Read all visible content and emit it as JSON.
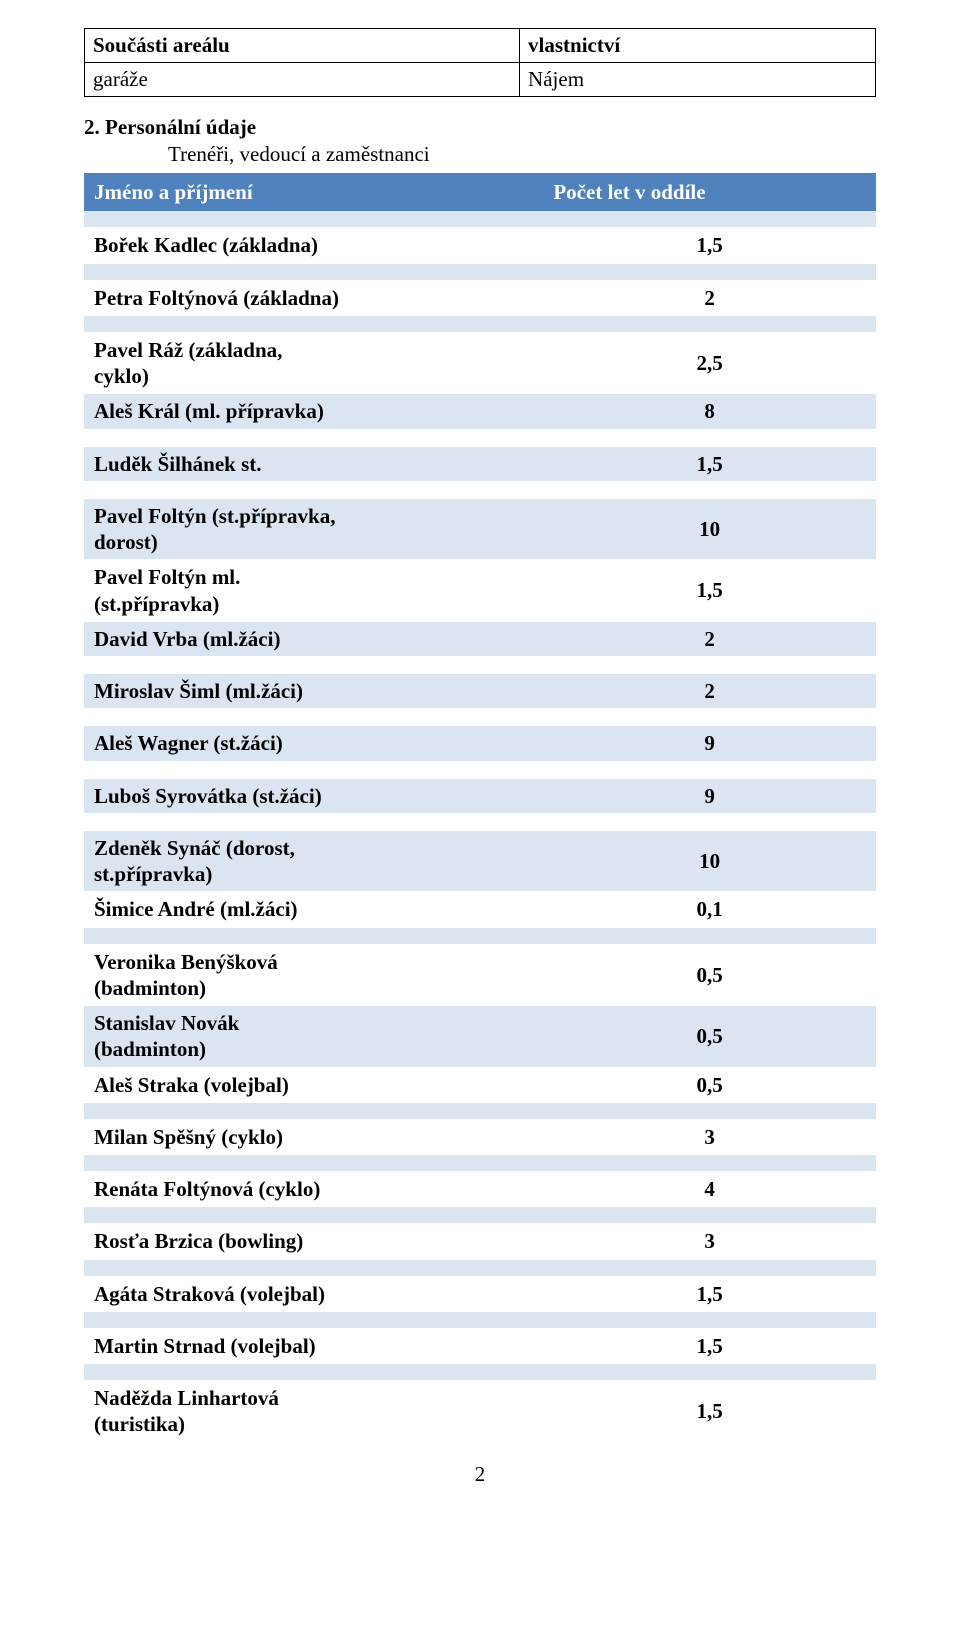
{
  "top_table": {
    "header": {
      "c1": "Součásti areálu",
      "c2": "vlastnictví"
    },
    "row": {
      "c1": "garáže",
      "c2": "Nájem"
    }
  },
  "section": {
    "number_title": "2. Personální údaje",
    "subline": "Trenéři, vedoucí a zaměstnanci"
  },
  "main_table": {
    "header": {
      "name": "Jméno a příjmení",
      "count": "Počet let v oddíle"
    },
    "band_colors": {
      "odd": "#dbe5f1",
      "even": "#ffffff"
    },
    "header_bg": "#4f81bd",
    "header_fg": "#ffffff",
    "rows": [
      {
        "name": "Bořek Kadlec (základna)",
        "count": "1,5",
        "gap_before": true
      },
      {
        "name": "Petra Foltýnová (základna)",
        "count": "2",
        "gap_before": true
      },
      {
        "name": "Pavel Ráž (základna,\ncyklo)",
        "count": "2,5",
        "gap_before": true
      },
      {
        "name": "Aleš Král (ml. přípravka)",
        "count": "8"
      },
      {
        "name": "Luděk Šilhánek st.",
        "count": "1,5",
        "gap_before": true
      },
      {
        "name": "Pavel Foltýn (st.přípravka,\ndorost)",
        "count": "10",
        "gap_before": true
      },
      {
        "name": "Pavel Foltýn ml.\n(st.přípravka)",
        "count": "1,5"
      },
      {
        "name": "David Vrba (ml.žáci)",
        "count": "2"
      },
      {
        "name": "Miroslav Šiml (ml.žáci)",
        "count": "2",
        "gap_before": true
      },
      {
        "name": "Aleš Wagner (st.žáci)",
        "count": "9",
        "gap_before": true
      },
      {
        "name": "Luboš Syrovátka (st.žáci)",
        "count": "9",
        "gap_before": true
      },
      {
        "name": "Zdeněk Synáč (dorost,\nst.přípravka)",
        "count": "10",
        "gap_before": true
      },
      {
        "name": "Šimice André (ml.žáci)",
        "count": "0,1"
      },
      {
        "name": "Veronika Benýšková\n(badminton)",
        "count": "0,5",
        "gap_before": true
      },
      {
        "name": "Stanislav Novák\n(badminton)",
        "count": "0,5"
      },
      {
        "name": "Aleš Straka (volejbal)",
        "count": "0,5"
      },
      {
        "name": "Milan Spěšný (cyklo)",
        "count": "3",
        "gap_before": true
      },
      {
        "name": "Renáta Foltýnová (cyklo)",
        "count": "4",
        "gap_before": true
      },
      {
        "name": "Rosťa Brzica (bowling)",
        "count": "3",
        "gap_before": true
      },
      {
        "name": "Agáta Straková (volejbal)",
        "count": "1,5",
        "gap_before": true
      },
      {
        "name": "Martin Strnad (volejbal)",
        "count": "1,5",
        "gap_before": true
      },
      {
        "name": "Naděžda Linhartová\n(turistika)",
        "count": "1,5",
        "gap_before": true
      }
    ]
  },
  "page_number": "2"
}
